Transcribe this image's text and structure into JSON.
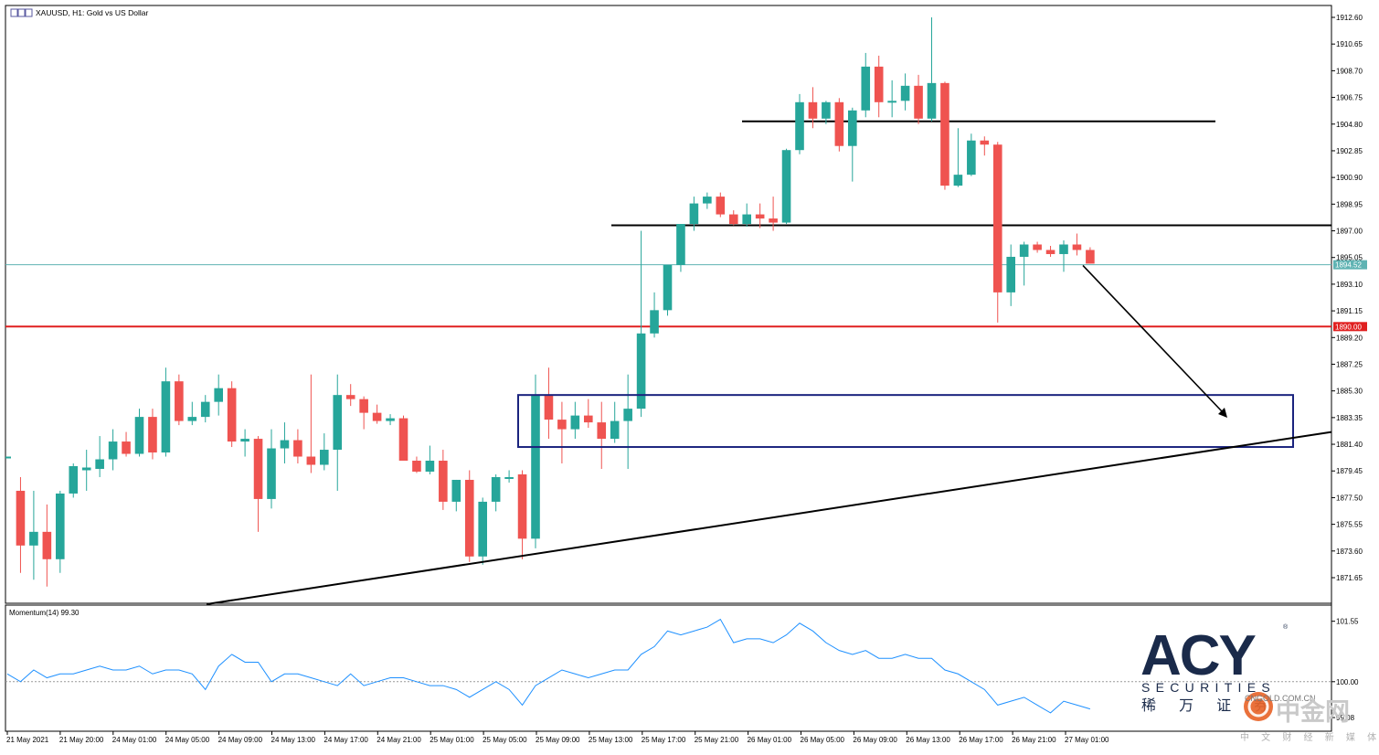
{
  "window": {
    "title": "XAUUSD, H1:  Gold vs US Dollar",
    "indicator_label": "Momentum(14) 99.30"
  },
  "colors": {
    "bull": "#26a69a",
    "bear": "#ef5350",
    "current_price_line": "#5fb3b3",
    "support_line": "#e02020",
    "box": "#1a237e",
    "momentum": "#1e90ff",
    "logo": "#1a2a4a"
  },
  "price_tags": {
    "current": "1894.52",
    "level": "1890.00"
  },
  "branding": {
    "acy": "ACY",
    "securities": "SECURITIES",
    "chinese_name": "稀 万 证 券",
    "cngold_url": "CNGOLD.COM.CN",
    "cngold_name": "中金网",
    "cngold_slogan": "中 文 财 经 新 媒 体"
  },
  "chart_data": {
    "type": "candlestick",
    "symbol": "XAUUSD",
    "timeframe": "H1",
    "y_range": [
      1870.0,
      1913.5
    ],
    "y_ticks": [
      "1912.60",
      "1910.65",
      "1908.70",
      "1906.75",
      "1904.80",
      "1902.85",
      "1900.90",
      "1898.95",
      "1897.00",
      "1895.05",
      "1893.10",
      "1891.15",
      "1889.20",
      "1887.25",
      "1885.30",
      "1883.35",
      "1881.40",
      "1879.45",
      "1877.50",
      "1875.55",
      "1873.60",
      "1871.65"
    ],
    "x_labels": [
      "21 May 2021",
      "21 May 20:00",
      "24 May 01:00",
      "24 May 05:00",
      "24 May 09:00",
      "24 May 13:00",
      "24 May 17:00",
      "24 May 21:00",
      "25 May 01:00",
      "25 May 05:00",
      "25 May 09:00",
      "25 May 13:00",
      "25 May 17:00",
      "25 May 21:00",
      "26 May 01:00",
      "26 May 05:00",
      "26 May 09:00",
      "26 May 13:00",
      "26 May 17:00",
      "26 May 21:00",
      "27 May 01:00"
    ],
    "candles": [
      {
        "o": 1880.5,
        "h": 1880.5,
        "l": 1880.5,
        "c": 1880.5
      },
      {
        "o": 1878.0,
        "h": 1879.0,
        "l": 1872.0,
        "c": 1874.0
      },
      {
        "o": 1874.0,
        "h": 1878.0,
        "l": 1871.5,
        "c": 1875.0
      },
      {
        "o": 1875.0,
        "h": 1877.0,
        "l": 1871.0,
        "c": 1873.0
      },
      {
        "o": 1873.0,
        "h": 1878.0,
        "l": 1872.0,
        "c": 1877.8
      },
      {
        "o": 1877.8,
        "h": 1880.0,
        "l": 1877.5,
        "c": 1879.8
      },
      {
        "o": 1879.5,
        "h": 1881.0,
        "l": 1878.0,
        "c": 1879.7
      },
      {
        "o": 1879.6,
        "h": 1882.0,
        "l": 1879.0,
        "c": 1880.3
      },
      {
        "o": 1880.3,
        "h": 1882.5,
        "l": 1879.5,
        "c": 1881.6
      },
      {
        "o": 1881.6,
        "h": 1882.3,
        "l": 1880.5,
        "c": 1880.7
      },
      {
        "o": 1880.7,
        "h": 1884.0,
        "l": 1880.5,
        "c": 1883.4
      },
      {
        "o": 1883.4,
        "h": 1884.0,
        "l": 1880.3,
        "c": 1880.8
      },
      {
        "o": 1880.8,
        "h": 1887.0,
        "l": 1880.5,
        "c": 1886.0
      },
      {
        "o": 1886.0,
        "h": 1886.5,
        "l": 1882.8,
        "c": 1883.1
      },
      {
        "o": 1883.1,
        "h": 1884.5,
        "l": 1882.8,
        "c": 1883.4
      },
      {
        "o": 1883.4,
        "h": 1885.0,
        "l": 1883.0,
        "c": 1884.5
      },
      {
        "o": 1884.5,
        "h": 1886.5,
        "l": 1883.5,
        "c": 1885.5
      },
      {
        "o": 1885.5,
        "h": 1886.0,
        "l": 1881.2,
        "c": 1881.6
      },
      {
        "o": 1881.6,
        "h": 1882.5,
        "l": 1880.5,
        "c": 1881.8
      },
      {
        "o": 1881.8,
        "h": 1882.0,
        "l": 1875.0,
        "c": 1877.4
      },
      {
        "o": 1877.4,
        "h": 1882.5,
        "l": 1876.7,
        "c": 1881.1
      },
      {
        "o": 1881.1,
        "h": 1883.0,
        "l": 1880.0,
        "c": 1881.7
      },
      {
        "o": 1881.7,
        "h": 1882.5,
        "l": 1880.0,
        "c": 1880.5
      },
      {
        "o": 1880.5,
        "h": 1886.5,
        "l": 1879.3,
        "c": 1879.9
      },
      {
        "o": 1879.9,
        "h": 1882.2,
        "l": 1879.5,
        "c": 1881.0
      },
      {
        "o": 1881.0,
        "h": 1886.5,
        "l": 1878.0,
        "c": 1885.0
      },
      {
        "o": 1885.0,
        "h": 1885.8,
        "l": 1884.2,
        "c": 1884.7
      },
      {
        "o": 1884.7,
        "h": 1884.9,
        "l": 1882.5,
        "c": 1883.7
      },
      {
        "o": 1883.7,
        "h": 1884.3,
        "l": 1882.9,
        "c": 1883.1
      },
      {
        "o": 1883.1,
        "h": 1883.6,
        "l": 1882.8,
        "c": 1883.3
      },
      {
        "o": 1883.3,
        "h": 1883.5,
        "l": 1880.2,
        "c": 1880.2
      },
      {
        "o": 1880.2,
        "h": 1880.5,
        "l": 1879.3,
        "c": 1879.4
      },
      {
        "o": 1879.4,
        "h": 1881.3,
        "l": 1879.2,
        "c": 1880.2
      },
      {
        "o": 1880.2,
        "h": 1881.0,
        "l": 1876.6,
        "c": 1877.2
      },
      {
        "o": 1877.2,
        "h": 1878.8,
        "l": 1876.5,
        "c": 1878.8
      },
      {
        "o": 1878.8,
        "h": 1879.5,
        "l": 1872.8,
        "c": 1873.2
      },
      {
        "o": 1873.2,
        "h": 1877.5,
        "l": 1872.6,
        "c": 1877.2
      },
      {
        "o": 1877.2,
        "h": 1879.2,
        "l": 1876.5,
        "c": 1879.0
      },
      {
        "o": 1879.0,
        "h": 1879.5,
        "l": 1878.6,
        "c": 1879.0
      },
      {
        "o": 1879.2,
        "h": 1879.5,
        "l": 1873.0,
        "c": 1874.5
      },
      {
        "o": 1874.5,
        "h": 1886.5,
        "l": 1873.8,
        "c": 1885.0
      },
      {
        "o": 1885.0,
        "h": 1887.0,
        "l": 1881.8,
        "c": 1883.2
      },
      {
        "o": 1883.2,
        "h": 1884.5,
        "l": 1880.0,
        "c": 1882.5
      },
      {
        "o": 1882.5,
        "h": 1884.5,
        "l": 1881.8,
        "c": 1883.5
      },
      {
        "o": 1883.5,
        "h": 1884.7,
        "l": 1882.6,
        "c": 1883.0
      },
      {
        "o": 1883.0,
        "h": 1884.5,
        "l": 1879.6,
        "c": 1881.8
      },
      {
        "o": 1881.8,
        "h": 1884.5,
        "l": 1881.5,
        "c": 1883.1
      },
      {
        "o": 1883.1,
        "h": 1886.5,
        "l": 1879.6,
        "c": 1884.0
      },
      {
        "o": 1884.0,
        "h": 1897.0,
        "l": 1883.4,
        "c": 1889.5
      },
      {
        "o": 1889.5,
        "h": 1892.5,
        "l": 1889.2,
        "c": 1891.2
      },
      {
        "o": 1891.2,
        "h": 1894.5,
        "l": 1890.8,
        "c": 1894.5
      },
      {
        "o": 1894.5,
        "h": 1897.5,
        "l": 1894.0,
        "c": 1897.5
      },
      {
        "o": 1897.5,
        "h": 1899.5,
        "l": 1897.0,
        "c": 1899.0
      },
      {
        "o": 1899.0,
        "h": 1899.8,
        "l": 1898.6,
        "c": 1899.5
      },
      {
        "o": 1899.5,
        "h": 1899.8,
        "l": 1898.0,
        "c": 1898.2
      },
      {
        "o": 1898.2,
        "h": 1898.5,
        "l": 1897.4,
        "c": 1897.5
      },
      {
        "o": 1897.5,
        "h": 1899.0,
        "l": 1897.3,
        "c": 1898.2
      },
      {
        "o": 1898.2,
        "h": 1899.0,
        "l": 1897.2,
        "c": 1897.9
      },
      {
        "o": 1897.9,
        "h": 1899.5,
        "l": 1897.0,
        "c": 1897.6
      },
      {
        "o": 1897.6,
        "h": 1903.0,
        "l": 1897.5,
        "c": 1902.9
      },
      {
        "o": 1902.9,
        "h": 1907.0,
        "l": 1902.6,
        "c": 1906.4
      },
      {
        "o": 1906.4,
        "h": 1907.5,
        "l": 1904.5,
        "c": 1905.2
      },
      {
        "o": 1905.2,
        "h": 1906.5,
        "l": 1904.8,
        "c": 1906.4
      },
      {
        "o": 1906.4,
        "h": 1906.7,
        "l": 1902.8,
        "c": 1903.2
      },
      {
        "o": 1903.2,
        "h": 1906.0,
        "l": 1900.6,
        "c": 1905.8
      },
      {
        "o": 1905.8,
        "h": 1910.0,
        "l": 1905.3,
        "c": 1909.0
      },
      {
        "o": 1909.0,
        "h": 1909.8,
        "l": 1905.3,
        "c": 1906.4
      },
      {
        "o": 1906.4,
        "h": 1908.0,
        "l": 1905.3,
        "c": 1906.5
      },
      {
        "o": 1906.5,
        "h": 1908.5,
        "l": 1905.8,
        "c": 1907.6
      },
      {
        "o": 1907.6,
        "h": 1908.4,
        "l": 1904.8,
        "c": 1905.2
      },
      {
        "o": 1905.2,
        "h": 1912.6,
        "l": 1905.0,
        "c": 1907.8
      },
      {
        "o": 1907.8,
        "h": 1907.9,
        "l": 1900.0,
        "c": 1900.3
      },
      {
        "o": 1900.3,
        "h": 1904.5,
        "l": 1900.2,
        "c": 1901.1
      },
      {
        "o": 1901.1,
        "h": 1904.1,
        "l": 1901.0,
        "c": 1903.6
      },
      {
        "o": 1903.6,
        "h": 1903.9,
        "l": 1902.5,
        "c": 1903.3
      },
      {
        "o": 1903.3,
        "h": 1903.5,
        "l": 1890.3,
        "c": 1892.5
      },
      {
        "o": 1892.5,
        "h": 1896.0,
        "l": 1891.5,
        "c": 1895.1
      },
      {
        "o": 1895.1,
        "h": 1896.2,
        "l": 1893.0,
        "c": 1896.0
      },
      {
        "o": 1896.0,
        "h": 1896.2,
        "l": 1895.4,
        "c": 1895.6
      },
      {
        "o": 1895.6,
        "h": 1895.9,
        "l": 1895.1,
        "c": 1895.3
      },
      {
        "o": 1895.3,
        "h": 1896.3,
        "l": 1894.0,
        "c": 1896.0
      },
      {
        "o": 1896.0,
        "h": 1896.8,
        "l": 1895.2,
        "c": 1895.6
      },
      {
        "o": 1895.6,
        "h": 1895.8,
        "l": 1894.6,
        "c": 1894.6
      }
    ],
    "horizontal_lines": [
      {
        "price": 1905.0,
        "style": "resistance"
      },
      {
        "price": 1897.4,
        "style": "resistance"
      },
      {
        "price": 1894.52,
        "style": "current-price"
      },
      {
        "price": 1890.0,
        "style": "support"
      }
    ],
    "zone": {
      "price_top": 1885.0,
      "price_bottom": 1881.2
    },
    "trendline": {
      "from_price": 1870.0,
      "to_price": 1882.3
    },
    "momentum": {
      "name": "Momentum(14)",
      "last": "99.30",
      "y_range": [
        98.8,
        101.8
      ],
      "y_ticks": [
        "101.55",
        "100.00",
        "99.08"
      ],
      "reference": 100.0,
      "values": [
        100.2,
        100.0,
        100.3,
        100.1,
        100.2,
        100.2,
        100.3,
        100.4,
        100.3,
        100.3,
        100.4,
        100.2,
        100.3,
        100.3,
        100.2,
        99.8,
        100.4,
        100.7,
        100.5,
        100.5,
        100.0,
        100.2,
        100.2,
        100.1,
        100.0,
        99.9,
        100.2,
        99.9,
        100.0,
        100.1,
        100.1,
        100.0,
        99.9,
        99.9,
        99.8,
        99.6,
        99.8,
        100.0,
        99.8,
        99.4,
        99.9,
        100.1,
        100.3,
        100.2,
        100.1,
        100.2,
        100.3,
        100.3,
        100.7,
        100.9,
        101.3,
        101.2,
        101.3,
        101.4,
        101.6,
        101.0,
        101.1,
        101.1,
        101.0,
        101.2,
        101.5,
        101.3,
        101.0,
        100.8,
        100.7,
        100.8,
        100.6,
        100.6,
        100.7,
        100.6,
        100.6,
        100.3,
        100.2,
        100.0,
        99.8,
        99.4,
        99.5,
        99.6,
        99.4,
        99.2,
        99.5,
        99.4,
        99.3
      ]
    }
  }
}
